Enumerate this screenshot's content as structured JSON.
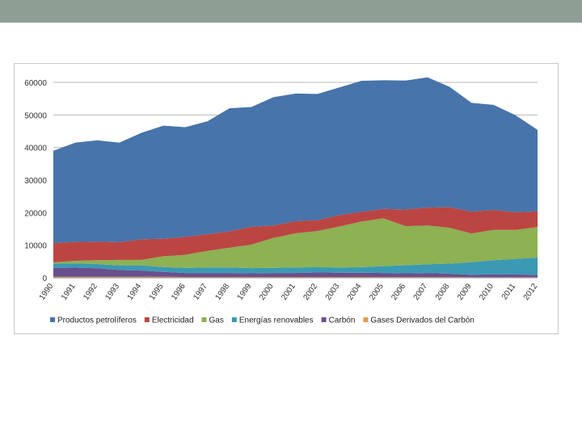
{
  "chart_data": {
    "type": "area",
    "stacked": true,
    "title": "",
    "xlabel": "",
    "ylabel": "",
    "ylim": [
      0,
      60000
    ],
    "yticks": [
      0,
      10000,
      20000,
      30000,
      40000,
      50000,
      60000
    ],
    "grid": true,
    "legend_position": "bottom",
    "categories": [
      "1990",
      "1991",
      "1992",
      "1993",
      "1994",
      "1995",
      "1996",
      "1997",
      "1998",
      "1999",
      "2000",
      "2001",
      "2002",
      "2003",
      "2004",
      "2005",
      "2006",
      "2007",
      "2008",
      "2009",
      "2010",
      "2011",
      "2012"
    ],
    "series": [
      {
        "name": "Gases Derivados del Carbón",
        "color": "#e89b4c",
        "values": [
          300,
          300,
          300,
          300,
          300,
          300,
          250,
          250,
          250,
          250,
          250,
          250,
          250,
          250,
          250,
          250,
          250,
          250,
          250,
          200,
          200,
          200,
          200
        ]
      },
      {
        "name": "Carbón",
        "color": "#6a4f8f",
        "values": [
          2700,
          2800,
          2600,
          2100,
          1900,
          1500,
          1200,
          1200,
          1200,
          1100,
          1200,
          1200,
          1400,
          1300,
          1300,
          1200,
          1100,
          1200,
          1000,
          700,
          900,
          800,
          700
        ]
      },
      {
        "name": "Energías renovables",
        "color": "#3b99b3",
        "values": [
          1300,
          1300,
          1300,
          1400,
          1600,
          1500,
          1600,
          1700,
          1700,
          1600,
          1600,
          1700,
          1600,
          1600,
          1700,
          2100,
          2500,
          2700,
          3100,
          3900,
          4300,
          4800,
          5300
        ]
      },
      {
        "name": "Gas",
        "color": "#8db153",
        "values": [
          400,
          800,
          1200,
          1700,
          1700,
          3300,
          4000,
          5100,
          6100,
          7200,
          9200,
          10500,
          11100,
          12600,
          14000,
          14700,
          12000,
          11900,
          11000,
          8800,
          9300,
          8900,
          9400
        ]
      },
      {
        "name": "Electricidad",
        "color": "#bb4542",
        "values": [
          5900,
          5800,
          5700,
          5400,
          6300,
          5400,
          5500,
          5100,
          5000,
          5500,
          3800,
          3700,
          3300,
          3500,
          3000,
          2900,
          5100,
          5500,
          6300,
          6700,
          6100,
          5400,
          4800
        ]
      },
      {
        "name": "Productos petrolíferos",
        "color": "#4774aa",
        "values": [
          28400,
          30500,
          31100,
          30600,
          32700,
          34700,
          33700,
          34700,
          37800,
          36800,
          39400,
          39200,
          38800,
          39200,
          40200,
          39500,
          39600,
          40000,
          37000,
          33400,
          32300,
          29800,
          25000
        ]
      }
    ],
    "legend": [
      "Productos petrolíferos",
      "Electricidad",
      "Gas",
      "Energías renovables",
      "Carbón",
      "Gases Derivados del Carbón"
    ]
  }
}
